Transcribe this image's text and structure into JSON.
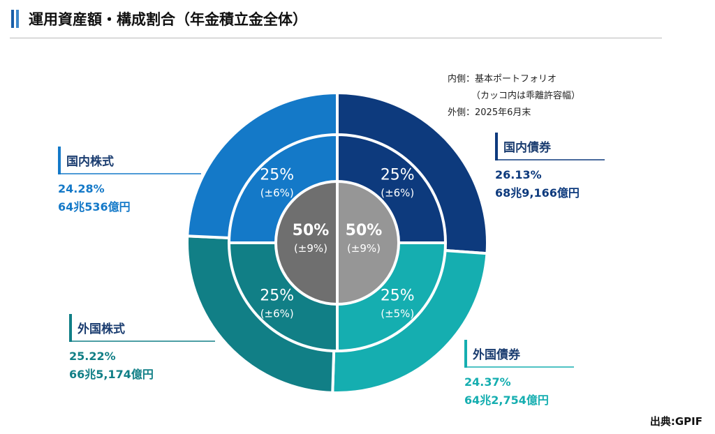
{
  "title": "運用資産額・構成割合（年金積立金全体）",
  "note": {
    "inner": "内側：基本ポートフォリオ",
    "inner_sub": "（カッコ内は乖離許容幅）",
    "outer": "外側：2025年6月末"
  },
  "source": "出典:GPIF",
  "colors": {
    "domestic_bonds": "#0d3a7d",
    "domestic_stocks": "#1479c8",
    "foreign_stocks": "#117f86",
    "foreign_bonds": "#15aeb0",
    "center_left": "#6f6f6f",
    "center_right": "#969696"
  },
  "chart_data": {
    "type": "pie",
    "rings": {
      "outer": {
        "label": "2025年6月末",
        "slices": [
          {
            "name": "国内債券",
            "percent": 26.13,
            "percent_label": "26.13%",
            "amount": "68兆9,166億円"
          },
          {
            "name": "外国債券",
            "percent": 24.37,
            "percent_label": "24.37%",
            "amount": "64兆2,754億円"
          },
          {
            "name": "外国株式",
            "percent": 25.22,
            "percent_label": "25.22%",
            "amount": "66兆5,174億円"
          },
          {
            "name": "国内株式",
            "percent": 24.28,
            "percent_label": "24.28%",
            "amount": "64兆536億円"
          }
        ]
      },
      "middle": {
        "label": "基本ポートフォリオ",
        "slices": [
          {
            "name": "国内債券",
            "percent": 25,
            "label": "25%",
            "band": "(±6%)"
          },
          {
            "name": "外国債券",
            "percent": 25,
            "label": "25%",
            "band": "(±5%)"
          },
          {
            "name": "外国株式",
            "percent": 25,
            "label": "25%",
            "band": "(±6%)"
          },
          {
            "name": "国内株式",
            "percent": 25,
            "label": "25%",
            "band": "(±6%)"
          }
        ]
      },
      "center": {
        "slices": [
          {
            "side": "right",
            "percent": 50,
            "label": "50%",
            "band": "(±9%)"
          },
          {
            "side": "left",
            "percent": 50,
            "label": "50%",
            "band": "(±9%)"
          }
        ]
      }
    }
  }
}
